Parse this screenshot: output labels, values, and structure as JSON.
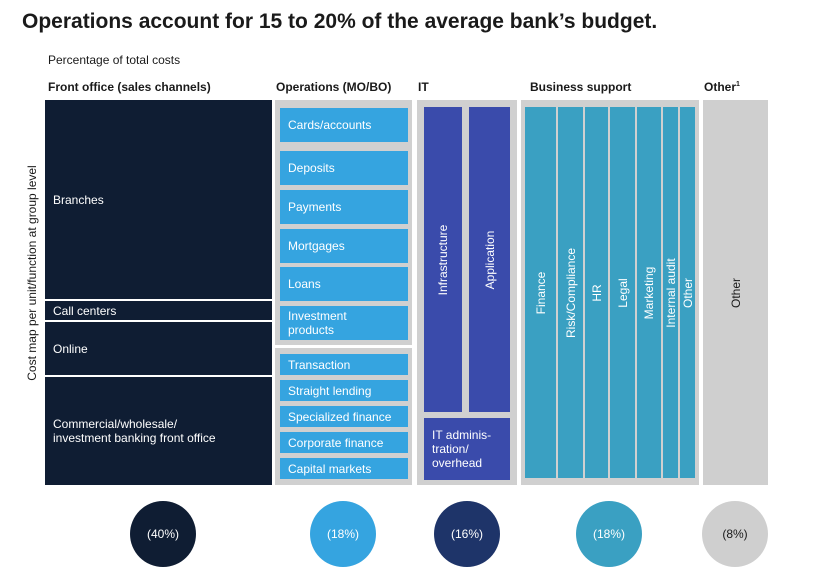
{
  "chart_data": {
    "type": "treemap",
    "title": "Operations account for 15 to 20% of the average bank’s budget.",
    "subtitle": "Percentage of total costs",
    "ylabel": "Cost map per unit/function at group level",
    "columns": [
      {
        "name": "Front office (sales channels)",
        "share": "(40%)",
        "value": 40,
        "items": [
          "Branches",
          "Call centers",
          "Online",
          "Commercial/wholesale/ investment banking front office"
        ]
      },
      {
        "name": "Operations (MO/BO)",
        "share": "(18%)",
        "value": 18,
        "items_group1": [
          "Cards/accounts",
          "Deposits",
          "Payments",
          "Mortgages",
          "Loans",
          "Investment products"
        ],
        "items_group2": [
          "Transaction",
          "Straight lending",
          "Specialized finance",
          "Corporate finance",
          "Capital markets"
        ]
      },
      {
        "name": "IT",
        "share": "(16%)",
        "value": 16,
        "items": [
          "Infrastructure",
          "Application",
          "IT adminis- tration/ overhead"
        ]
      },
      {
        "name": "Business support",
        "share": "(18%)",
        "value": 18,
        "items": [
          "Finance",
          "Risk/Compliance",
          "HR",
          "Legal",
          "Marketing",
          "Internal audit",
          "Other"
        ]
      },
      {
        "name": "Other",
        "superscript": "1",
        "share": "(8%)",
        "value": 8,
        "items": [
          "Other"
        ]
      }
    ]
  },
  "colors": {
    "front_office": "#0f1d33",
    "operations": "#35a4e0",
    "it": "#3a4bab",
    "it_circle": "#1e3469",
    "business_support": "#3aa0c2",
    "other": "#cfcfcf",
    "border_grey": "#d0d0d0"
  }
}
